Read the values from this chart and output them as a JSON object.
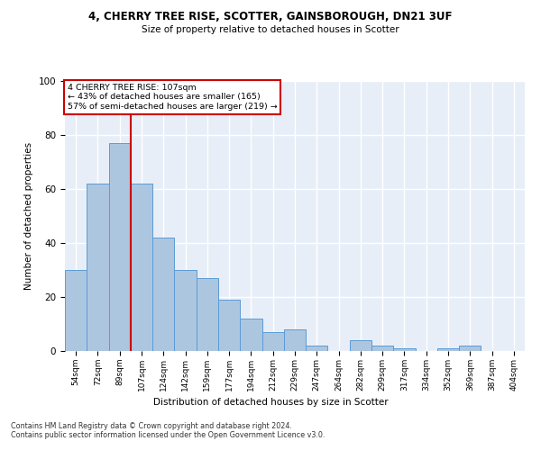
{
  "title1": "4, CHERRY TREE RISE, SCOTTER, GAINSBOROUGH, DN21 3UF",
  "title2": "Size of property relative to detached houses in Scotter",
  "xlabel": "Distribution of detached houses by size in Scotter",
  "ylabel": "Number of detached properties",
  "bar_labels": [
    "54sqm",
    "72sqm",
    "89sqm",
    "107sqm",
    "124sqm",
    "142sqm",
    "159sqm",
    "177sqm",
    "194sqm",
    "212sqm",
    "229sqm",
    "247sqm",
    "264sqm",
    "282sqm",
    "299sqm",
    "317sqm",
    "334sqm",
    "352sqm",
    "369sqm",
    "387sqm",
    "404sqm"
  ],
  "bar_values": [
    30,
    62,
    77,
    62,
    42,
    30,
    27,
    19,
    12,
    7,
    8,
    2,
    0,
    4,
    2,
    1,
    0,
    1,
    2,
    0,
    0
  ],
  "bar_color": "#adc6e0",
  "bar_edge_color": "#5b9bd5",
  "vline_x_index": 3,
  "vline_color": "#cc0000",
  "annotation_line1": "4 CHERRY TREE RISE: 107sqm",
  "annotation_line2": "← 43% of detached houses are smaller (165)",
  "annotation_line3": "57% of semi-detached houses are larger (219) →",
  "annotation_box_color": "#cc0000",
  "ylim": [
    0,
    100
  ],
  "background_color": "#e8eef7",
  "grid_color": "#ffffff",
  "footnote1": "Contains HM Land Registry data © Crown copyright and database right 2024.",
  "footnote2": "Contains public sector information licensed under the Open Government Licence v3.0."
}
